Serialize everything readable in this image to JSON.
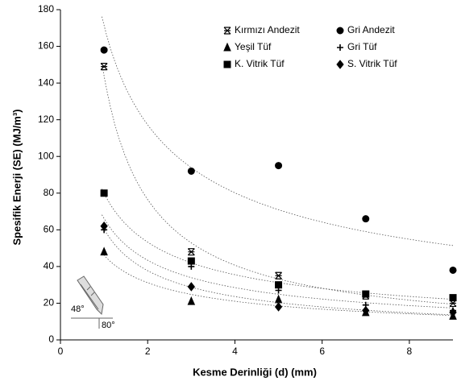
{
  "chart_data": {
    "type": "scatter",
    "x_label": "Kesme Derinliği (d) (mm)",
    "y_label": "Spesifik Enerji (SE) (MJ/m³)",
    "x": [
      1,
      3,
      5,
      7,
      9
    ],
    "series": [
      {
        "name": "Kırmızı Andezit",
        "marker": "asterisk",
        "color": "#000000",
        "values": [
          149,
          48,
          35,
          24,
          20
        ]
      },
      {
        "name": "Gri Andezit",
        "marker": "circle",
        "color": "#000000",
        "values": [
          158,
          92,
          95,
          66,
          38
        ]
      },
      {
        "name": "Yeşil Tüf",
        "marker": "triangle",
        "color": "#000000",
        "values": [
          48,
          21,
          22,
          15,
          13
        ]
      },
      {
        "name": "Gri Tüf",
        "marker": "plus",
        "color": "#000000",
        "values": [
          60,
          40,
          27,
          19,
          16
        ]
      },
      {
        "name": "K. Vitrik Tüf",
        "marker": "square",
        "color": "#000000",
        "values": [
          80,
          43,
          30,
          25,
          23
        ]
      },
      {
        "name": "S. Vitrik Tüf",
        "marker": "diamond",
        "color": "#000000",
        "values": [
          62,
          29,
          18,
          16,
          15
        ]
      }
    ],
    "trendline": "power",
    "xlim": [
      0,
      9
    ],
    "xticks": [
      0,
      2,
      4,
      6,
      8
    ],
    "ylim": [
      0,
      180
    ],
    "yticks": [
      0,
      20,
      40,
      60,
      80,
      100,
      120,
      140,
      160,
      180
    ],
    "grid": false,
    "legend": "top-right",
    "annotations": [
      "48°",
      "80°"
    ]
  }
}
